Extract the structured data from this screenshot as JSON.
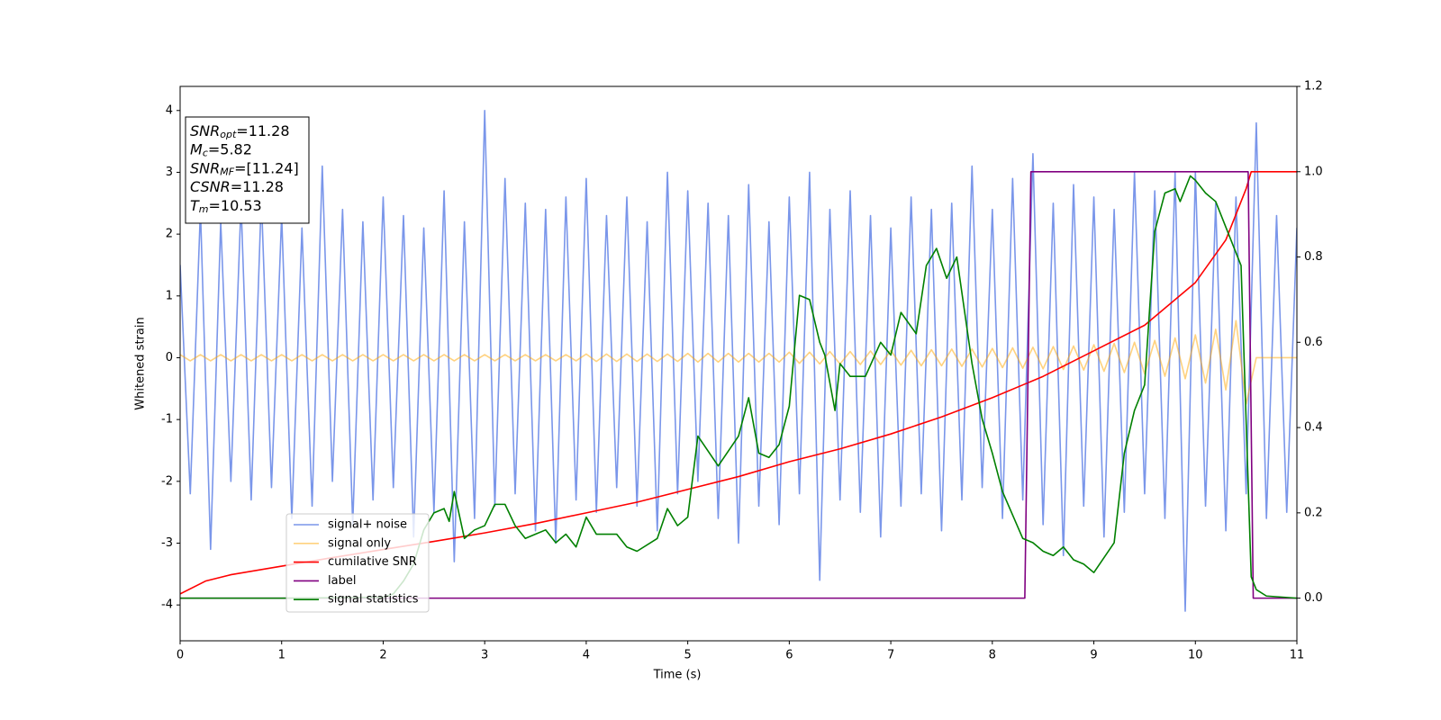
{
  "chart_data": {
    "type": "line",
    "xlabel": "Time (s)",
    "ylabel": "Whitened strain",
    "xlim": [
      0,
      11
    ],
    "ylim": [
      -4.58,
      4.39
    ],
    "y2lim": [
      -0.1,
      1.2
    ],
    "xticks": [
      0,
      1,
      2,
      3,
      4,
      5,
      6,
      7,
      8,
      9,
      10,
      11
    ],
    "yticks": [
      -4,
      -3,
      -2,
      -1,
      0,
      1,
      2,
      3,
      4
    ],
    "y2ticks": [
      {
        "value": 0,
        "label": "0.0"
      },
      {
        "value": 0.2,
        "label": "0.2"
      },
      {
        "value": 0.4,
        "label": "0.4"
      },
      {
        "value": 0.6,
        "label": "0.6"
      },
      {
        "value": 0.8,
        "label": "0.8"
      },
      {
        "value": 1,
        "label": "1.0"
      },
      {
        "value": 1.2,
        "label": "1.2"
      }
    ],
    "x": [
      0,
      0.1,
      0.2,
      0.3,
      0.4,
      0.5,
      0.6,
      0.7,
      0.8,
      0.9,
      1,
      1.1,
      1.2,
      1.3,
      1.4,
      1.5,
      1.6,
      1.7,
      1.8,
      1.9,
      2,
      2.1,
      2.2,
      2.3,
      2.4,
      2.5,
      2.6,
      2.7,
      2.8,
      2.9,
      3,
      3.1,
      3.2,
      3.3,
      3.4,
      3.5,
      3.6,
      3.7,
      3.8,
      3.9,
      4,
      4.1,
      4.2,
      4.3,
      4.4,
      4.5,
      4.6,
      4.7,
      4.8,
      4.9,
      5,
      5.1,
      5.2,
      5.3,
      5.4,
      5.5,
      5.6,
      5.7,
      5.8,
      5.9,
      6,
      6.1,
      6.2,
      6.3,
      6.4,
      6.5,
      6.6,
      6.7,
      6.8,
      6.9,
      7,
      7.1,
      7.2,
      7.3,
      7.4,
      7.5,
      7.6,
      7.7,
      7.8,
      7.9,
      8,
      8.1,
      8.2,
      8.3,
      8.4,
      8.5,
      8.6,
      8.7,
      8.8,
      8.9,
      9,
      9.1,
      9.2,
      9.3,
      9.4,
      9.5,
      9.6,
      9.7,
      9.8,
      9.9,
      10,
      10.1,
      10.2,
      10.3,
      10.4,
      10.5,
      10.6,
      10.7,
      10.8,
      10.9,
      11
    ],
    "series": [
      {
        "name": "signal+ noise",
        "color": "#4169e1",
        "alpha": 0.7,
        "values": [
          1.5,
          -2.2,
          2.4,
          -3.1,
          2.2,
          -2.0,
          2.5,
          -2.3,
          2.6,
          -2.1,
          2.3,
          -2.6,
          2.1,
          -2.4,
          3.1,
          -2.0,
          2.4,
          -2.7,
          2.2,
          -2.3,
          2.6,
          -2.1,
          2.3,
          -2.9,
          2.1,
          -2.5,
          2.7,
          -3.3,
          2.2,
          -2.6,
          4.0,
          -2.4,
          2.9,
          -2.2,
          2.5,
          -2.8,
          2.4,
          -3.0,
          2.6,
          -2.3,
          2.9,
          -2.5,
          2.3,
          -2.1,
          2.6,
          -2.4,
          2.2,
          -2.8,
          3.0,
          -2.2,
          2.7,
          -2.0,
          2.5,
          -2.6,
          2.3,
          -3.0,
          2.8,
          -2.4,
          2.2,
          -2.7,
          2.6,
          -2.2,
          3.0,
          -3.6,
          2.4,
          -2.3,
          2.7,
          -2.5,
          2.3,
          -2.9,
          2.1,
          -2.4,
          2.6,
          -2.2,
          2.4,
          -2.8,
          2.5,
          -2.3,
          3.1,
          -2.1,
          2.4,
          -2.6,
          2.9,
          -2.3,
          3.3,
          -2.7,
          2.5,
          -3.2,
          2.8,
          -2.4,
          2.6,
          -2.9,
          2.4,
          -2.5,
          3.0,
          -2.2,
          2.7,
          -2.6,
          3.0,
          -4.1,
          3.0,
          -2.4,
          2.5,
          -2.8,
          2.6,
          -2.2,
          3.8,
          -2.6,
          2.3,
          -2.5,
          2.1
        ]
      },
      {
        "name": "signal only",
        "color": "#ffa500",
        "alpha": 0.5,
        "values": [
          0.05,
          -0.05,
          0.05,
          -0.05,
          0.05,
          -0.05,
          0.05,
          -0.05,
          0.05,
          -0.05,
          0.05,
          -0.05,
          0.05,
          -0.05,
          0.05,
          -0.05,
          0.05,
          -0.05,
          0.05,
          -0.05,
          0.05,
          -0.05,
          0.05,
          -0.05,
          0.05,
          -0.05,
          0.05,
          -0.05,
          0.05,
          -0.05,
          0.05,
          -0.05,
          0.05,
          -0.05,
          0.05,
          -0.05,
          0.05,
          -0.05,
          0.05,
          -0.05,
          0.06,
          -0.06,
          0.06,
          -0.06,
          0.06,
          -0.06,
          0.06,
          -0.06,
          0.06,
          -0.06,
          0.07,
          -0.07,
          0.07,
          -0.07,
          0.07,
          -0.07,
          0.07,
          -0.07,
          0.07,
          -0.07,
          0.09,
          -0.09,
          0.09,
          -0.1,
          0.1,
          -0.1,
          0.1,
          -0.11,
          0.11,
          -0.11,
          0.12,
          -0.12,
          0.12,
          -0.13,
          0.13,
          -0.13,
          0.14,
          -0.14,
          0.14,
          -0.15,
          0.15,
          -0.16,
          0.16,
          -0.17,
          0.17,
          -0.18,
          0.18,
          -0.19,
          0.19,
          -0.2,
          0.21,
          -0.22,
          0.23,
          -0.24,
          0.25,
          -0.26,
          0.28,
          -0.3,
          0.32,
          -0.34,
          0.37,
          -0.41,
          0.46,
          -0.52,
          0.6,
          -0.75,
          0,
          0,
          0,
          0,
          0
        ]
      },
      {
        "name": "cumilative SNR",
        "color": "#ff0000",
        "axis": "y2",
        "x": [
          0,
          0.25,
          0.5,
          1,
          1.5,
          2,
          2.5,
          3,
          3.5,
          4,
          4.5,
          5,
          5.5,
          6,
          6.5,
          7,
          7.5,
          8,
          8.5,
          9,
          9.5,
          10,
          10.3,
          10.5,
          10.55,
          11
        ],
        "values": [
          0.01,
          0.04,
          0.055,
          0.075,
          0.095,
          0.114,
          0.133,
          0.153,
          0.175,
          0.2,
          0.225,
          0.255,
          0.285,
          0.32,
          0.35,
          0.385,
          0.425,
          0.47,
          0.52,
          0.58,
          0.64,
          0.74,
          0.84,
          0.96,
          1.0,
          1.0
        ]
      },
      {
        "name": "label",
        "color": "#800080",
        "axis": "y2",
        "x": [
          0,
          8.32,
          8.38,
          10.52,
          10.57,
          11
        ],
        "values": [
          0,
          0,
          1,
          1,
          0,
          0
        ]
      },
      {
        "name": "signal statistics",
        "color": "#008000",
        "axis": "y2",
        "x": [
          0,
          1,
          2,
          2.1,
          2.2,
          2.3,
          2.4,
          2.5,
          2.6,
          2.65,
          2.7,
          2.8,
          2.9,
          3,
          3.1,
          3.2,
          3.3,
          3.4,
          3.5,
          3.6,
          3.7,
          3.8,
          3.9,
          4,
          4.1,
          4.3,
          4.4,
          4.5,
          4.7,
          4.8,
          4.9,
          5,
          5.1,
          5.3,
          5.5,
          5.6,
          5.7,
          5.8,
          5.9,
          6,
          6.1,
          6.2,
          6.3,
          6.35,
          6.45,
          6.5,
          6.6,
          6.75,
          6.9,
          7,
          7.1,
          7.25,
          7.35,
          7.45,
          7.55,
          7.65,
          7.8,
          7.9,
          8,
          8.1,
          8.3,
          8.4,
          8.5,
          8.6,
          8.7,
          8.8,
          8.9,
          9,
          9.2,
          9.3,
          9.4,
          9.5,
          9.6,
          9.7,
          9.8,
          9.85,
          9.95,
          10,
          10.1,
          10.2,
          10.35,
          10.45,
          10.55,
          10.6,
          10.7,
          11
        ],
        "values": [
          0,
          0,
          0.002,
          0.01,
          0.04,
          0.08,
          0.16,
          0.2,
          0.21,
          0.18,
          0.25,
          0.14,
          0.16,
          0.17,
          0.22,
          0.22,
          0.17,
          0.14,
          0.15,
          0.16,
          0.13,
          0.15,
          0.12,
          0.19,
          0.15,
          0.15,
          0.12,
          0.11,
          0.14,
          0.21,
          0.17,
          0.19,
          0.38,
          0.31,
          0.38,
          0.47,
          0.34,
          0.33,
          0.36,
          0.45,
          0.71,
          0.7,
          0.6,
          0.57,
          0.44,
          0.55,
          0.52,
          0.52,
          0.6,
          0.57,
          0.67,
          0.62,
          0.78,
          0.82,
          0.75,
          0.8,
          0.55,
          0.42,
          0.34,
          0.25,
          0.14,
          0.13,
          0.11,
          0.1,
          0.12,
          0.09,
          0.08,
          0.06,
          0.13,
          0.34,
          0.44,
          0.5,
          0.86,
          0.95,
          0.96,
          0.93,
          0.99,
          0.98,
          0.95,
          0.93,
          0.84,
          0.78,
          0.05,
          0.02,
          0.005,
          0
        ]
      }
    ],
    "annotations": [
      {
        "text": "SNR",
        "sub": "opt",
        "value": "=11.28"
      },
      {
        "text": "M",
        "sub": "c",
        "value": "=5.82"
      },
      {
        "text": "SNR",
        "sub": "MF",
        "value": "=[11.24]"
      },
      {
        "text": "CSNR",
        "value": "=11.28"
      },
      {
        "text": "T",
        "sub": "m",
        "value": "=10.53"
      }
    ]
  }
}
